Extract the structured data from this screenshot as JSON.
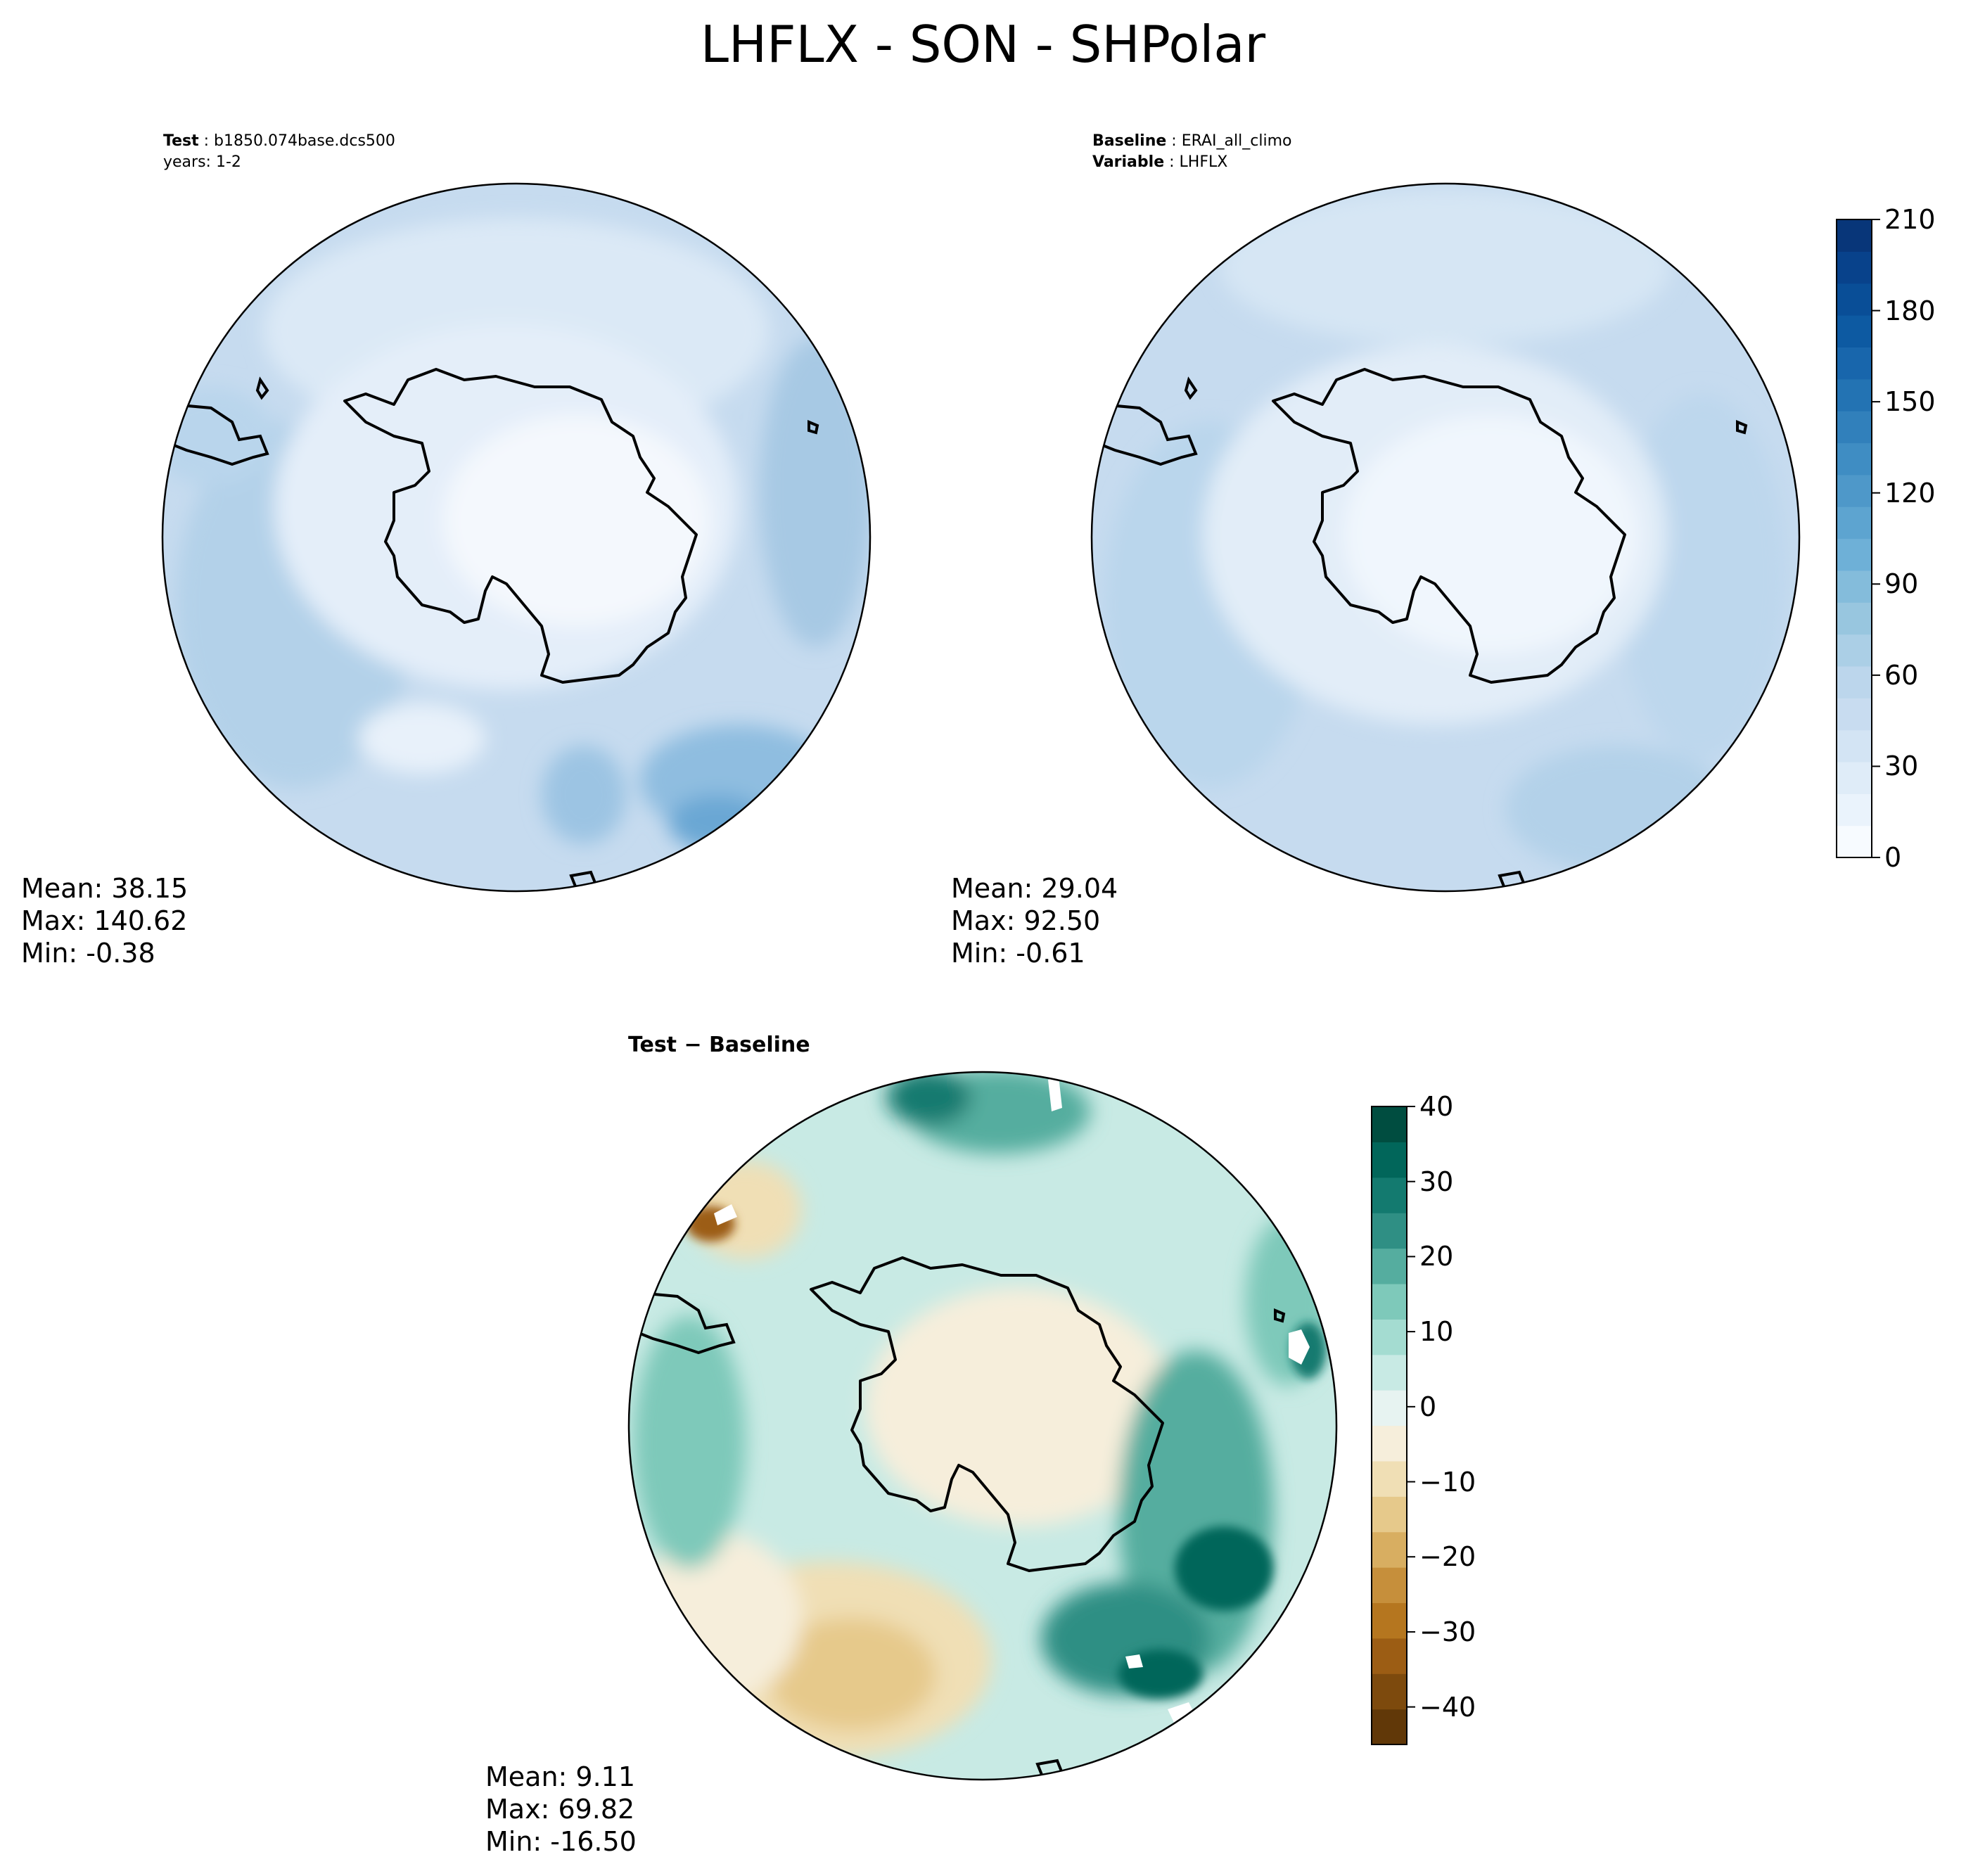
{
  "figure": {
    "title": "LHFLX - SON - SHPolar"
  },
  "panels": [
    {
      "id": "test",
      "label_bold": "Test",
      "label_text": "b1850.074base.dcs500",
      "label2_text": "years: 1-2",
      "stats": {
        "mean": "Mean: 38.15",
        "max": "Max: 140.62",
        "min": "Min: -0.38"
      }
    },
    {
      "id": "baseline",
      "label_bold": "Baseline",
      "label_text": "ERAI_all_climo",
      "label2_bold": "Variable",
      "label2_text": "LHFLX",
      "stats": {
        "mean": "Mean: 29.04",
        "max": "Max: 92.50",
        "min": "Min: -0.61"
      }
    },
    {
      "id": "difference",
      "title": "Test − Baseline",
      "stats": {
        "mean": "Mean:  9.11",
        "max": "Max: 69.82",
        "min": "Min: -16.50"
      }
    }
  ],
  "colorbars": {
    "absolute": {
      "colormap": "Blues",
      "min": 0,
      "max": 210,
      "ticks": [
        "0",
        "30",
        "60",
        "90",
        "120",
        "150",
        "180",
        "210"
      ],
      "levels": 21,
      "colors": [
        "#f7fbff",
        "#eaf3fc",
        "#dfecf8",
        "#d3e4f4",
        "#c8dcf0",
        "#bcd6ec",
        "#abcfe6",
        "#98c6df",
        "#84bcdb",
        "#6eb0d7",
        "#5da4d0",
        "#4e98c9",
        "#3f8dc3",
        "#3180bb",
        "#2373b3",
        "#1866ac",
        "#0d5aa2",
        "#094e97",
        "#08428b",
        "#083679"
      ]
    },
    "difference": {
      "colormap": "BrBG",
      "min": -45,
      "max": 40,
      "ticks": [
        "−40",
        "−30",
        "−20",
        "−10",
        "0",
        "10",
        "20",
        "30",
        "40"
      ],
      "colors": [
        "#613808",
        "#7d4a0d",
        "#9c5d14",
        "#b5761f",
        "#c68f3b",
        "#d8ae61",
        "#e6c98b",
        "#f0dfb5",
        "#f6eedb",
        "#e7f3f1",
        "#c8eae4",
        "#a4dcd1",
        "#7ec9ba",
        "#55ad9f",
        "#2f8f84",
        "#137a6f",
        "#01665a",
        "#004d40"
      ]
    }
  }
}
